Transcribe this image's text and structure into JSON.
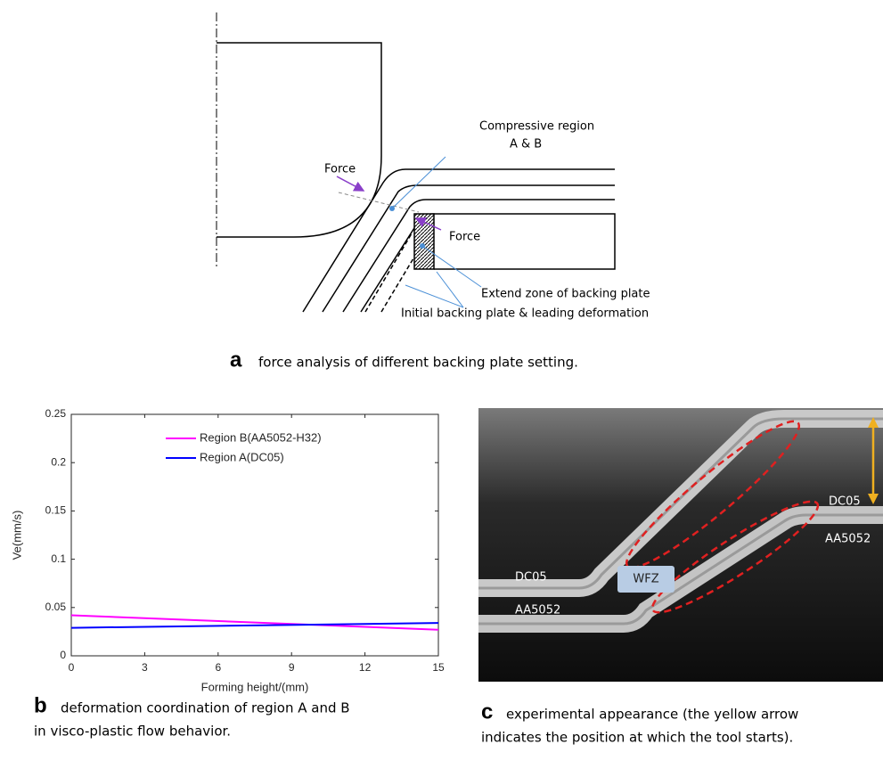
{
  "panel_a": {
    "labels": {
      "compressive_region": [
        "Compressive region",
        "A & B"
      ],
      "force_tool": "Force",
      "force_plate": "Force",
      "extend_zone": "Extend zone of  backing plate",
      "initial_plate": "Initial backing plate & leading deformation"
    },
    "caption": {
      "letter": "a",
      "text": "force analysis of different backing plate setting."
    }
  },
  "chart_data": {
    "type": "line",
    "x": [
      0,
      15
    ],
    "xlabel": "Forming height/(mm)",
    "ylabel": "Ve(mm/s)",
    "xlim": [
      0,
      15
    ],
    "ylim": [
      0,
      0.25
    ],
    "xticks": [
      0,
      3,
      6,
      9,
      12,
      15
    ],
    "yticks": [
      0,
      0.05,
      0.1,
      0.15,
      0.2,
      0.25
    ],
    "series": [
      {
        "name": "Region B(AA5052-H32)",
        "color": "#ff00ff",
        "values": [
          0.042,
          0.027
        ]
      },
      {
        "name": "Region A(DC05)",
        "color": "#0000ff",
        "values": [
          0.029,
          0.034
        ]
      }
    ],
    "legend": "upper center"
  },
  "caption_b": {
    "letter": "b",
    "lines": [
      "deformation coordination of region A and B",
      "in visco-plastic flow behavior."
    ]
  },
  "panel_c": {
    "labels": {
      "top_left": "DC05",
      "top_right": "DC05",
      "bottom_left": "AA5052",
      "bottom_right": "AA5052",
      "zone": "WFZ"
    },
    "caption": {
      "letter": "c",
      "lines": [
        "experimental appearance (the yellow arrow",
        "indicates the position at which the tool starts)."
      ]
    }
  }
}
